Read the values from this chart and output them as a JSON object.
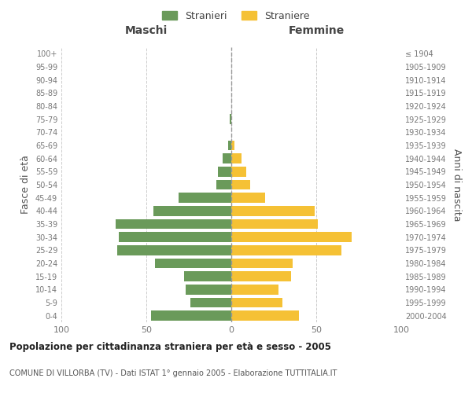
{
  "age_groups": [
    "0-4",
    "5-9",
    "10-14",
    "15-19",
    "20-24",
    "25-29",
    "30-34",
    "35-39",
    "40-44",
    "45-49",
    "50-54",
    "55-59",
    "60-64",
    "65-69",
    "70-74",
    "75-79",
    "80-84",
    "85-89",
    "90-94",
    "95-99",
    "100+"
  ],
  "birth_years": [
    "2000-2004",
    "1995-1999",
    "1990-1994",
    "1985-1989",
    "1980-1984",
    "1975-1979",
    "1970-1974",
    "1965-1969",
    "1960-1964",
    "1955-1959",
    "1950-1954",
    "1945-1949",
    "1940-1944",
    "1935-1939",
    "1930-1934",
    "1925-1929",
    "1920-1924",
    "1915-1919",
    "1910-1914",
    "1905-1909",
    "≤ 1904"
  ],
  "maschi": [
    47,
    24,
    27,
    28,
    45,
    67,
    66,
    68,
    46,
    31,
    9,
    8,
    5,
    2,
    0,
    1,
    0,
    0,
    0,
    0,
    0
  ],
  "femmine": [
    40,
    30,
    28,
    35,
    36,
    65,
    71,
    51,
    49,
    20,
    11,
    9,
    6,
    2,
    0,
    0,
    0,
    0,
    0,
    0,
    0
  ],
  "male_color": "#6a9a5a",
  "female_color": "#f5c135",
  "male_label": "Stranieri",
  "female_label": "Straniere",
  "title": "Popolazione per cittadinanza straniera per età e sesso - 2005",
  "subtitle": "COMUNE DI VILLORBA (TV) - Dati ISTAT 1° gennaio 2005 - Elaborazione TUTTITALIA.IT",
  "xlabel_left": "Maschi",
  "xlabel_right": "Femmine",
  "ylabel_left": "Fasce di età",
  "ylabel_right": "Anni di nascita",
  "xlim": 100,
  "background_color": "#ffffff",
  "grid_color": "#cccccc"
}
